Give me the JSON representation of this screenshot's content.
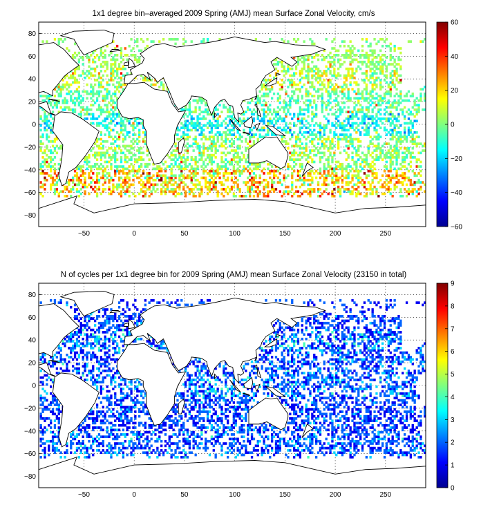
{
  "chart_data": [
    {
      "type": "heatmap",
      "title": "1x1 degree bin–averaged 2009 Spring (AMJ) mean Surface Zonal Velocity, cm/s",
      "xlabel": "",
      "ylabel": "",
      "xlim": [
        -95,
        290
      ],
      "ylim": [
        -90,
        90
      ],
      "x_ticks": [
        -50,
        0,
        50,
        100,
        150,
        200,
        250
      ],
      "y_ticks": [
        -80,
        -60,
        -40,
        -20,
        0,
        20,
        40,
        60,
        80
      ],
      "grid": true,
      "colorbar": {
        "colormap": "jet",
        "range": [
          -60,
          60
        ],
        "ticks": [
          -60,
          -40,
          -20,
          0,
          20,
          40,
          60
        ]
      },
      "description_of_field": "sparse 1x1 degree ocean bins; mostly near 0 (cyan-green), positive (eastward, yellow-red) in Southern Ocean band 40S-60S, Kuroshio ~35N, Gulf Stream ~40N; negative (blue) in equatorial band",
      "regions": [
        {
          "lat": [
            -65,
            -40
          ],
          "value": 18,
          "spread": 22
        },
        {
          "lat": [
            -40,
            -10
          ],
          "value": 2,
          "spread": 12
        },
        {
          "lat": [
            -10,
            10
          ],
          "value": -12,
          "spread": 14
        },
        {
          "lat": [
            10,
            30
          ],
          "value": -4,
          "spread": 10
        },
        {
          "lat": [
            30,
            50
          ],
          "value": 6,
          "spread": 14
        },
        {
          "lat": [
            50,
            75
          ],
          "value": 3,
          "spread": 8
        }
      ]
    },
    {
      "type": "heatmap",
      "title": "N of cycles per 1x1 degree bin for 2009 Spring (AMJ) mean Surface Zonal Velocity (23150 in total)",
      "xlabel": "",
      "ylabel": "",
      "xlim": [
        -95,
        290
      ],
      "ylim": [
        -90,
        90
      ],
      "x_ticks": [
        -50,
        0,
        50,
        100,
        150,
        200,
        250
      ],
      "y_ticks": [
        -80,
        -60,
        -40,
        -20,
        0,
        20,
        40,
        60,
        80
      ],
      "grid": true,
      "colorbar": {
        "colormap": "jet",
        "range": [
          0,
          9
        ],
        "ticks": [
          0,
          1,
          2,
          3,
          4,
          5,
          6,
          7,
          8,
          9
        ]
      },
      "total_cycles": 23150,
      "description_of_field": "mostly 1-2 cycles per bin (blue), occasional 3-5 (cyan-yellow), rare 6-9 (red) near Kuroshio, Gulf Stream and Arabian Sea",
      "regions": [
        {
          "lat": [
            -65,
            -40
          ],
          "value": 1.8,
          "spread": 1.2
        },
        {
          "lat": [
            -40,
            -10
          ],
          "value": 1.6,
          "spread": 1.0
        },
        {
          "lat": [
            -10,
            10
          ],
          "value": 2.0,
          "spread": 1.4
        },
        {
          "lat": [
            10,
            30
          ],
          "value": 1.7,
          "spread": 1.2
        },
        {
          "lat": [
            30,
            50
          ],
          "value": 2.0,
          "spread": 1.6
        },
        {
          "lat": [
            50,
            75
          ],
          "value": 1.5,
          "spread": 0.9
        }
      ]
    }
  ]
}
